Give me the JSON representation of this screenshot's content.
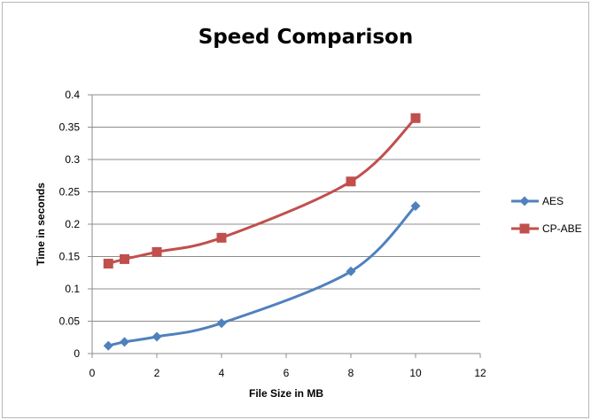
{
  "chart_data": {
    "type": "line",
    "title": "Speed Comparison",
    "xlabel": "File Size  in MB",
    "ylabel": "Time in seconds",
    "xlim": [
      0,
      12
    ],
    "ylim": [
      0,
      0.4
    ],
    "x_ticks": [
      "0",
      "2",
      "4",
      "6",
      "8",
      "10",
      "12"
    ],
    "y_ticks": [
      "0",
      "0.05",
      "0.1",
      "0.15",
      "0.2",
      "0.25",
      "0.3",
      "0.35",
      "0.4"
    ],
    "grid": "horizontal",
    "legend": "right",
    "series": [
      {
        "name": "AES",
        "color": "#4f81bd",
        "marker": "diamond",
        "x": [
          0.5,
          1,
          2,
          4,
          8,
          10
        ],
        "y": [
          0.012,
          0.018,
          0.026,
          0.047,
          0.127,
          0.228
        ]
      },
      {
        "name": "CP-ABE",
        "color": "#c0504d",
        "marker": "square",
        "x": [
          0.5,
          1,
          2,
          4,
          8,
          10
        ],
        "y": [
          0.139,
          0.146,
          0.157,
          0.179,
          0.266,
          0.364
        ]
      }
    ]
  }
}
